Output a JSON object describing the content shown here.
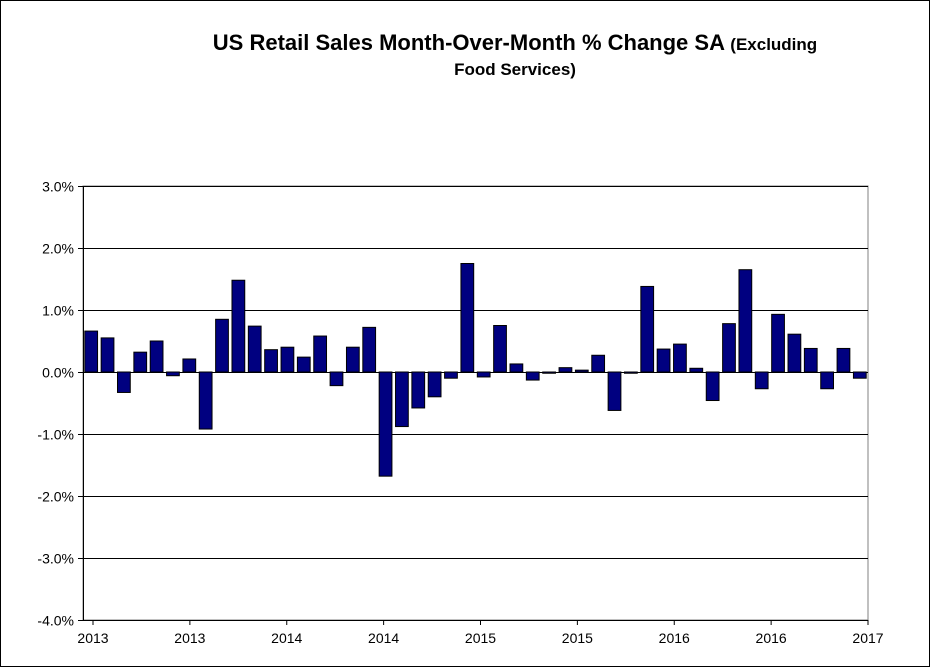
{
  "chart_data": {
    "type": "bar",
    "title": "US Retail Sales Month-Over-Month %  Change SA",
    "title_suffix": "(Excluding",
    "title_line2": "Food Services)",
    "ylim": [
      -4.0,
      3.0
    ],
    "yticks": [
      "3.0%",
      "2.0%",
      "1.0%",
      "0.0%",
      "-1.0%",
      "-2.0%",
      "-3.0%",
      "-4.0%"
    ],
    "ytick_values": [
      3.0,
      2.0,
      1.0,
      0.0,
      -1.0,
      -2.0,
      -3.0,
      -4.0
    ],
    "xtick_labels": [
      "2013",
      "2013",
      "2014",
      "2014",
      "2015",
      "2015",
      "2016",
      "2016",
      "2017"
    ],
    "grid": true,
    "bar_color": "#000080",
    "values": [
      0.66,
      0.55,
      -0.33,
      0.32,
      0.5,
      -0.06,
      0.21,
      -0.92,
      0.85,
      1.48,
      0.74,
      0.36,
      0.4,
      0.24,
      0.58,
      -0.22,
      0.4,
      0.72,
      -1.68,
      -0.88,
      -0.58,
      -0.4,
      -0.1,
      1.75,
      -0.08,
      0.75,
      0.13,
      -0.13,
      -0.02,
      0.07,
      0.03,
      0.27,
      -0.62,
      -0.02,
      1.38,
      0.37,
      0.45,
      0.06,
      -0.46,
      0.78,
      1.65,
      -0.27,
      0.93,
      0.61,
      0.38,
      -0.27,
      0.38,
      -0.1
    ]
  }
}
